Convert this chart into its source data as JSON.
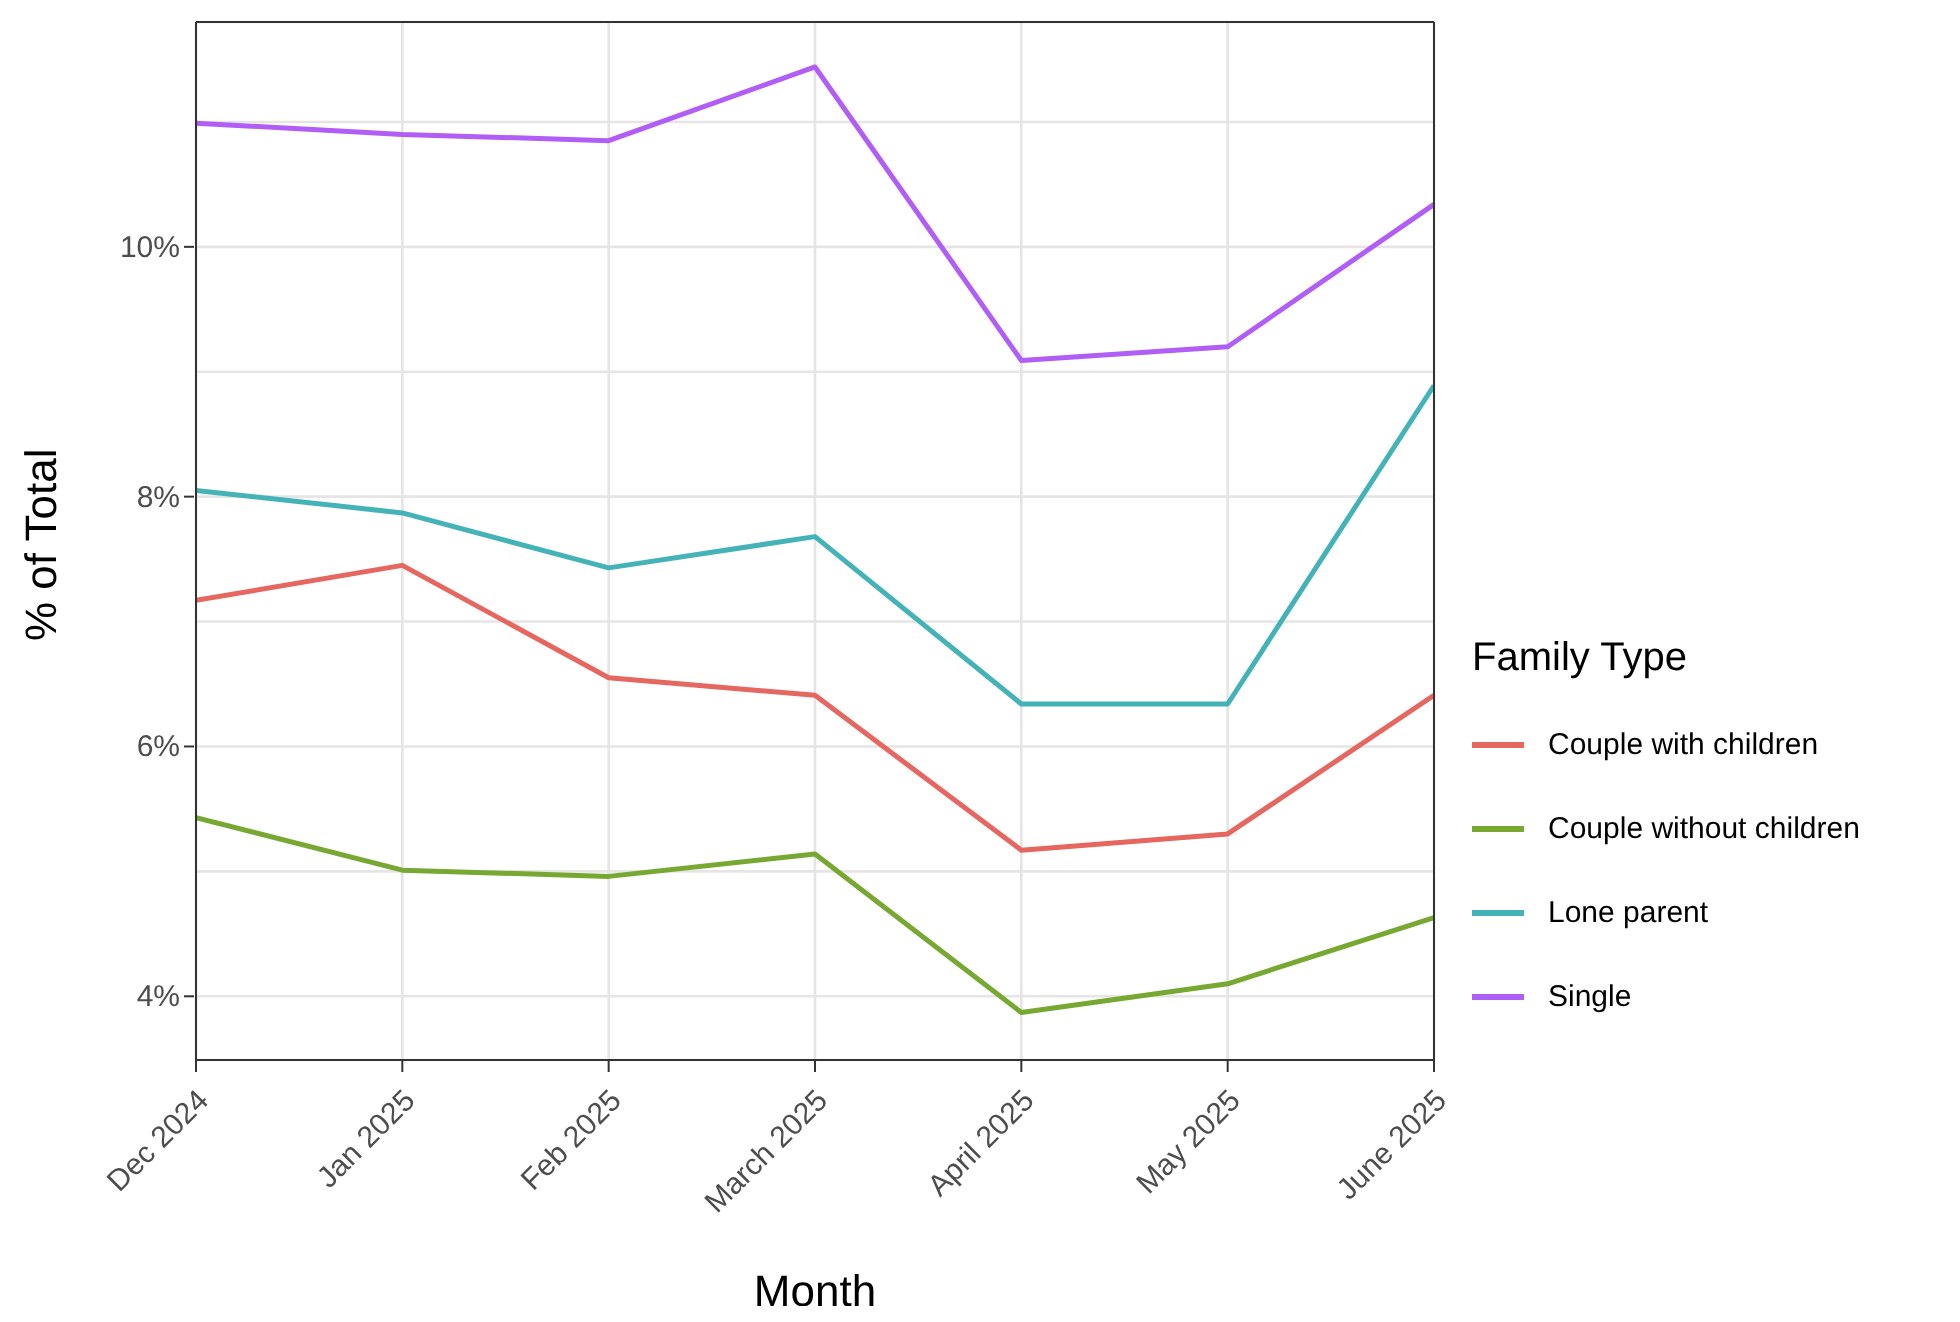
{
  "chart_data": {
    "type": "line",
    "xlabel": "Month",
    "ylabel": "% of Total",
    "legend_title": "Family Type",
    "legend": "right",
    "grid": true,
    "categories": [
      "Dec 2024",
      "Jan 2025",
      "Feb 2025",
      "March 2025",
      "April 2025",
      "May 2025",
      "June 2025"
    ],
    "ylim": [
      3.49,
      11.8
    ],
    "yticks": [
      {
        "value": 4,
        "label": "4%"
      },
      {
        "value": 5,
        "label": null
      },
      {
        "value": 6,
        "label": "6%"
      },
      {
        "value": 7,
        "label": null
      },
      {
        "value": 8,
        "label": "8%"
      },
      {
        "value": 9,
        "label": null
      },
      {
        "value": 10,
        "label": "10%"
      },
      {
        "value": 11,
        "label": null
      }
    ],
    "series": [
      {
        "name": "Couple with children",
        "color": "#e5675f",
        "values": [
          7.17,
          7.45,
          6.55,
          6.41,
          5.17,
          5.3,
          6.41
        ]
      },
      {
        "name": "Couple without children",
        "color": "#76a832",
        "values": [
          5.43,
          5.01,
          4.96,
          5.14,
          3.87,
          4.1,
          4.63
        ]
      },
      {
        "name": "Lone parent",
        "color": "#44b3b8",
        "values": [
          8.05,
          7.87,
          7.43,
          7.68,
          6.34,
          6.34,
          8.89
        ]
      },
      {
        "name": "Single",
        "color": "#b05ef5",
        "values": [
          10.99,
          10.9,
          10.85,
          11.44,
          9.09,
          9.2,
          10.34
        ]
      }
    ]
  }
}
